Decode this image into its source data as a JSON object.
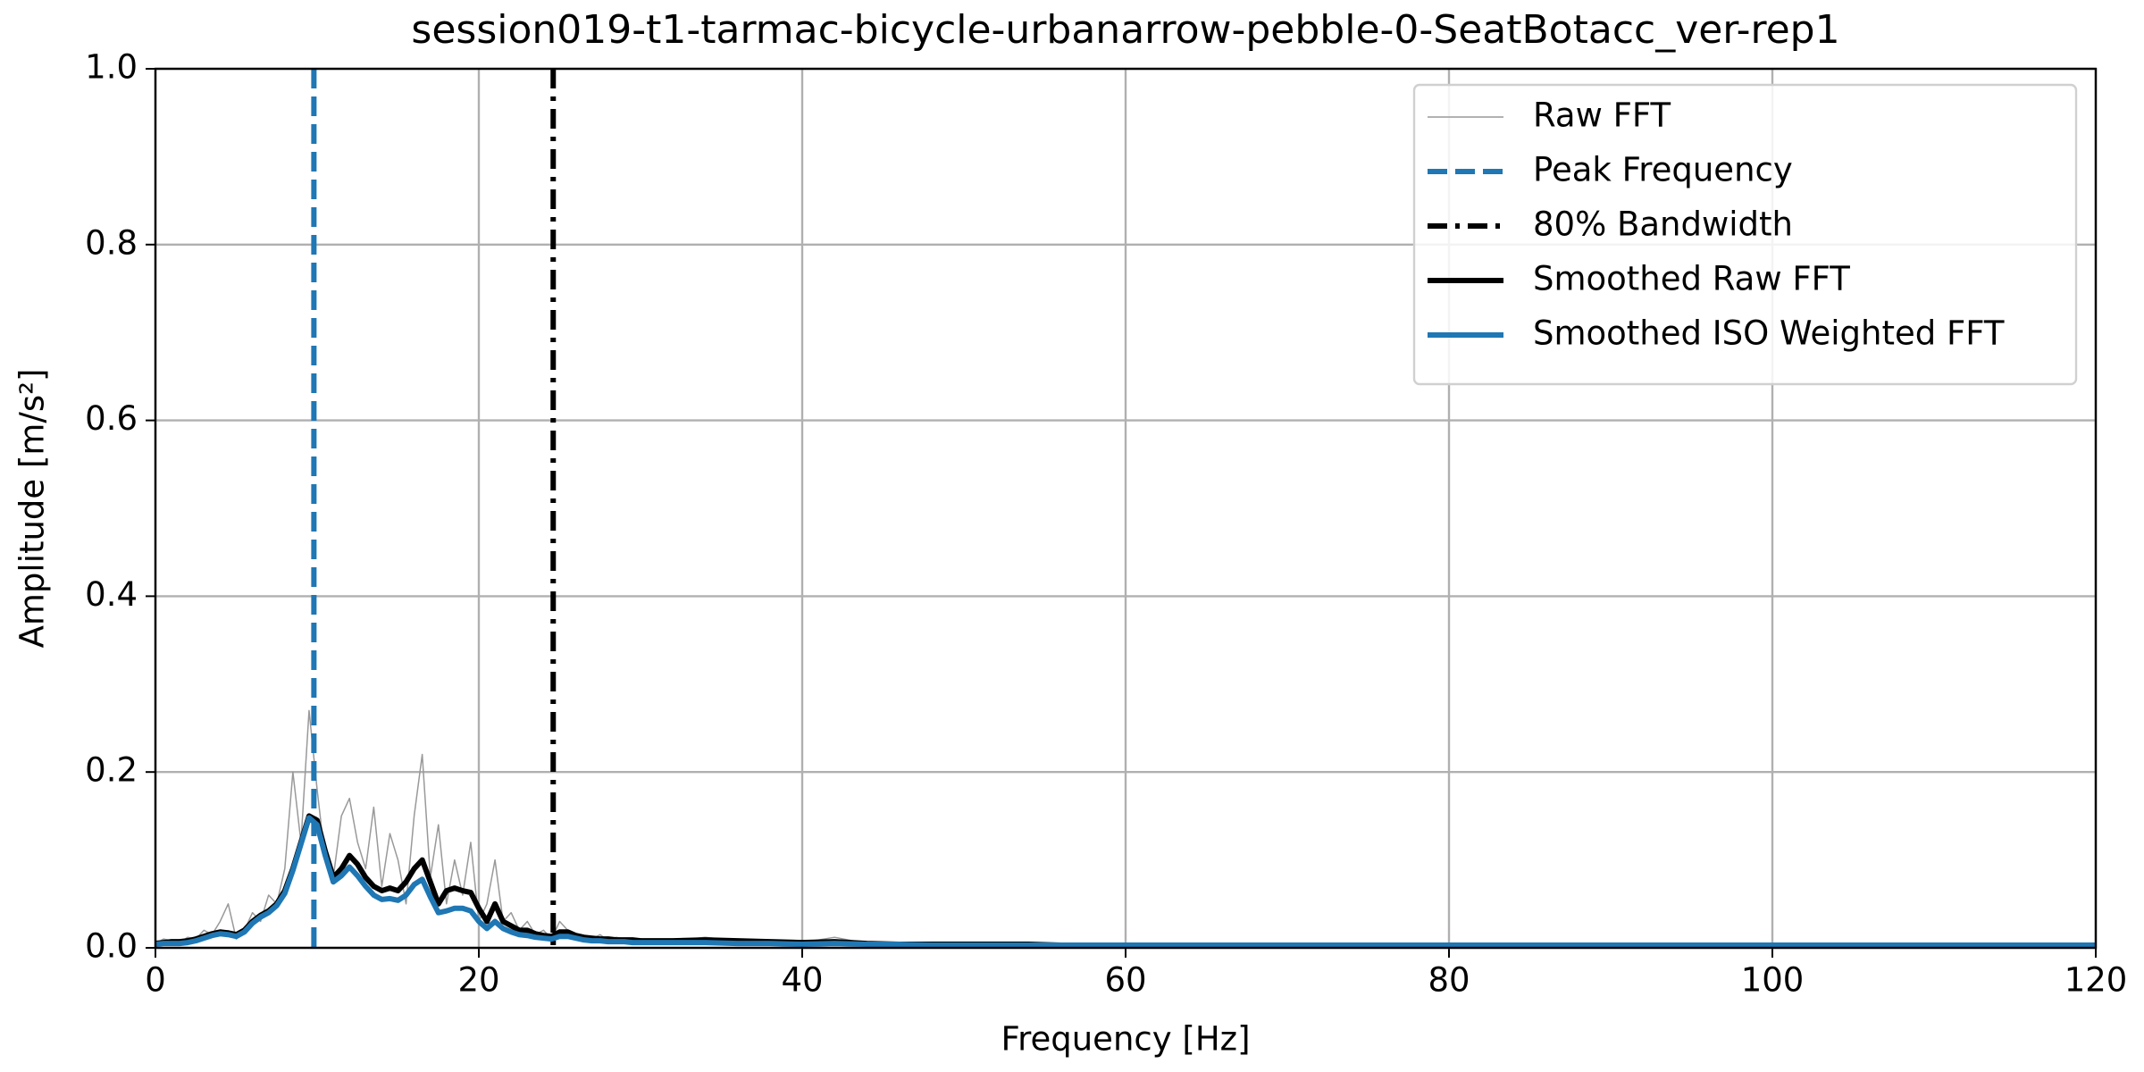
{
  "chart_data": {
    "type": "line",
    "title": "session019-t1-tarmac-bicycle-urbanarrow-pebble-0-SeatBotacc_ver-rep1",
    "x_label": "Frequency [Hz]",
    "y_label": "Amplitude [m/s²]",
    "x": [
      0,
      0.5,
      1,
      1.5,
      2,
      2.5,
      3,
      3.5,
      4,
      4.5,
      5,
      5.5,
      6,
      6.5,
      7,
      7.5,
      8,
      8.5,
      9,
      9.5,
      10,
      10.5,
      11,
      11.5,
      12,
      12.5,
      13,
      13.5,
      14,
      14.5,
      15,
      15.5,
      16,
      16.5,
      17,
      17.5,
      18,
      18.5,
      19,
      19.5,
      20,
      20.5,
      21,
      21.5,
      22,
      22.5,
      23,
      23.5,
      24,
      24.5,
      25,
      25.5,
      26,
      26.5,
      27,
      27.5,
      28,
      28.5,
      29,
      29.5,
      30,
      32,
      34,
      36,
      38,
      40,
      42,
      44,
      46,
      48,
      50,
      52,
      54,
      56,
      58,
      60,
      62,
      64,
      66,
      68,
      70,
      72,
      74,
      76,
      78,
      80,
      82,
      84,
      86,
      88,
      90,
      92,
      94,
      96,
      98,
      100,
      102,
      104,
      106,
      108,
      110,
      112,
      114,
      116,
      118,
      120
    ],
    "series": [
      {
        "name": "Raw FFT",
        "color": "#999999",
        "style": "solid",
        "width": 1.5,
        "values": [
          0.005,
          0.01,
          0.008,
          0.006,
          0.012,
          0.01,
          0.02,
          0.015,
          0.03,
          0.05,
          0.01,
          0.02,
          0.04,
          0.03,
          0.06,
          0.05,
          0.09,
          0.2,
          0.12,
          0.27,
          0.18,
          0.1,
          0.08,
          0.15,
          0.17,
          0.12,
          0.09,
          0.16,
          0.07,
          0.13,
          0.1,
          0.05,
          0.15,
          0.22,
          0.08,
          0.14,
          0.05,
          0.1,
          0.06,
          0.12,
          0.03,
          0.05,
          0.1,
          0.03,
          0.04,
          0.02,
          0.03,
          0.015,
          0.02,
          0.01,
          0.03,
          0.02,
          0.015,
          0.012,
          0.01,
          0.015,
          0.008,
          0.012,
          0.01,
          0.008,
          0.01,
          0.008,
          0.012,
          0.008,
          0.007,
          0.006,
          0.012,
          0.005,
          0.005,
          0.004,
          0.005,
          0.004,
          0.004,
          0.003,
          0.004,
          0.003,
          0.004,
          0.003,
          0.003,
          0.004,
          0.003,
          0.003,
          0.003,
          0.004,
          0.003,
          0.003,
          0.003,
          0.003,
          0.004,
          0.003,
          0.003,
          0.003,
          0.003,
          0.003,
          0.003,
          0.002,
          0.003,
          0.003,
          0.002,
          0.003,
          0.002,
          0.002,
          0.003,
          0.002,
          0.002,
          0.002
        ]
      },
      {
        "name": "Peak Frequency",
        "color": "#1f77b4",
        "style": "dashed",
        "width": 6,
        "xline": 9.8
      },
      {
        "name": "80% Bandwidth",
        "color": "#000000",
        "style": "dashdot",
        "width": 6,
        "xline": 24.6
      },
      {
        "name": "Smoothed Raw FFT",
        "color": "#000000",
        "style": "solid",
        "width": 6,
        "values": [
          0.005,
          0.006,
          0.007,
          0.007,
          0.008,
          0.01,
          0.013,
          0.016,
          0.018,
          0.017,
          0.015,
          0.02,
          0.03,
          0.037,
          0.042,
          0.05,
          0.065,
          0.09,
          0.12,
          0.15,
          0.145,
          0.11,
          0.08,
          0.09,
          0.105,
          0.095,
          0.08,
          0.07,
          0.065,
          0.068,
          0.065,
          0.075,
          0.09,
          0.1,
          0.075,
          0.05,
          0.065,
          0.068,
          0.065,
          0.063,
          0.045,
          0.03,
          0.05,
          0.03,
          0.025,
          0.02,
          0.02,
          0.016,
          0.014,
          0.013,
          0.018,
          0.018,
          0.014,
          0.012,
          0.011,
          0.01,
          0.01,
          0.009,
          0.009,
          0.009,
          0.008,
          0.008,
          0.009,
          0.008,
          0.007,
          0.006,
          0.007,
          0.005,
          0.004,
          0.004,
          0.004,
          0.004,
          0.004,
          0.003,
          0.003,
          0.003,
          0.003,
          0.003,
          0.003,
          0.003,
          0.003,
          0.003,
          0.003,
          0.003,
          0.003,
          0.003,
          0.003,
          0.003,
          0.003,
          0.003,
          0.003,
          0.003,
          0.003,
          0.003,
          0.003,
          0.003,
          0.003,
          0.003,
          0.003,
          0.003,
          0.003,
          0.003,
          0.003,
          0.003,
          0.003,
          0.003
        ]
      },
      {
        "name": "Smoothed ISO Weighted FFT",
        "color": "#1f77b4",
        "style": "solid",
        "width": 6,
        "values": [
          0.004,
          0.005,
          0.005,
          0.005,
          0.006,
          0.008,
          0.011,
          0.014,
          0.016,
          0.015,
          0.013,
          0.018,
          0.028,
          0.035,
          0.04,
          0.048,
          0.062,
          0.088,
          0.118,
          0.148,
          0.14,
          0.105,
          0.075,
          0.082,
          0.092,
          0.082,
          0.07,
          0.06,
          0.055,
          0.056,
          0.054,
          0.06,
          0.072,
          0.078,
          0.058,
          0.04,
          0.042,
          0.045,
          0.045,
          0.042,
          0.03,
          0.022,
          0.03,
          0.022,
          0.018,
          0.015,
          0.014,
          0.012,
          0.011,
          0.01,
          0.013,
          0.013,
          0.011,
          0.009,
          0.008,
          0.008,
          0.007,
          0.007,
          0.007,
          0.006,
          0.006,
          0.006,
          0.006,
          0.005,
          0.005,
          0.004,
          0.005,
          0.004,
          0.004,
          0.003,
          0.003,
          0.003,
          0.003,
          0.003,
          0.003,
          0.003,
          0.003,
          0.003,
          0.003,
          0.003,
          0.003,
          0.003,
          0.003,
          0.003,
          0.003,
          0.003,
          0.003,
          0.003,
          0.003,
          0.003,
          0.003,
          0.003,
          0.003,
          0.003,
          0.003,
          0.003,
          0.003,
          0.003,
          0.003,
          0.003,
          0.003,
          0.003,
          0.003,
          0.003,
          0.003,
          0.003
        ]
      }
    ],
    "xlim": [
      0,
      120
    ],
    "xticks": [
      0,
      20,
      40,
      60,
      80,
      100,
      120
    ],
    "ylim": [
      0,
      1
    ],
    "yticks": [
      {
        "value": 0,
        "label": "0.0"
      },
      {
        "value": 0.2,
        "label": "0.2"
      },
      {
        "value": 0.4,
        "label": "0.4"
      },
      {
        "value": 0.6,
        "label": "0.6"
      },
      {
        "value": 0.8,
        "label": "0.8"
      },
      {
        "value": 1,
        "label": "1.0"
      }
    ],
    "grid": true,
    "legend": "upper right"
  }
}
